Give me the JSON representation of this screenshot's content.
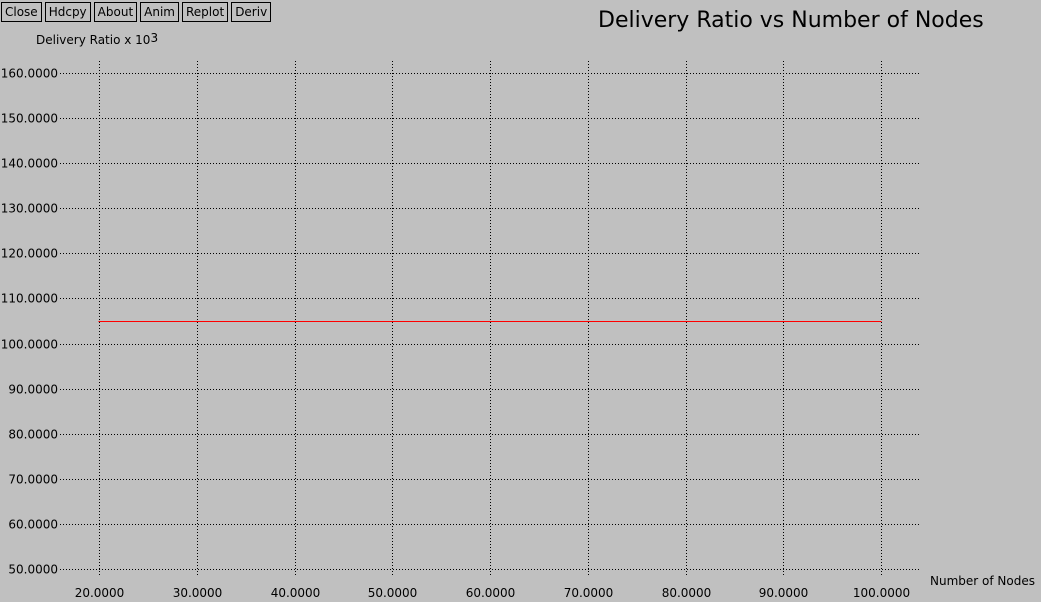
{
  "toolbar": {
    "buttons": [
      {
        "id": "close",
        "label": "Close"
      },
      {
        "id": "hdcpy",
        "label": "Hdcpy"
      },
      {
        "id": "about",
        "label": "About"
      },
      {
        "id": "anim",
        "label": "Anim"
      },
      {
        "id": "replot",
        "label": "Replot"
      },
      {
        "id": "deriv",
        "label": "Deriv"
      }
    ]
  },
  "chart_data": {
    "type": "line",
    "title": "Delivery Ratio vs Number of Nodes",
    "ylabel_text": "Delivery Ratio x 10",
    "ylabel_exponent": "3",
    "xlabel": "Number of Nodes",
    "xlim": [
      16,
      104
    ],
    "ylim": [
      48.5,
      162
    ],
    "xticks": [
      "20.0000",
      "30.0000",
      "40.0000",
      "50.0000",
      "60.0000",
      "70.0000",
      "80.0000",
      "90.0000",
      "100.0000"
    ],
    "yticks": [
      "50.0000",
      "60.0000",
      "70.0000",
      "80.0000",
      "90.0000",
      "100.0000",
      "110.0000",
      "120.0000",
      "130.0000",
      "140.0000",
      "150.0000",
      "160.0000"
    ],
    "grid": true,
    "line_color": "#ff0000",
    "series": [
      {
        "x": [
          20,
          30,
          40,
          50,
          60,
          70,
          80,
          90,
          100
        ],
        "y": [
          105,
          105,
          105,
          105,
          105,
          105,
          105,
          105,
          105
        ]
      }
    ]
  }
}
